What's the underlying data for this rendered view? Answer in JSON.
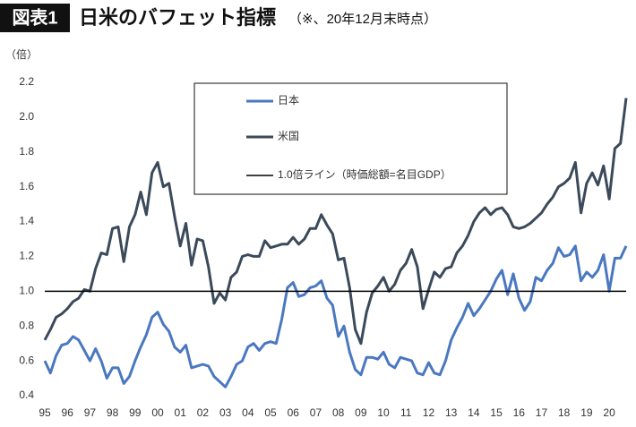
{
  "chart_data": {
    "type": "line",
    "badge": "図表1",
    "title": "日米のバフェット指標",
    "subtitle": "（※、20年12月末時点）",
    "y_unit": "（倍）",
    "categories": [
      "95",
      null,
      null,
      null,
      "96",
      null,
      null,
      null,
      "97",
      null,
      null,
      null,
      "98",
      null,
      null,
      null,
      "99",
      null,
      null,
      null,
      "00",
      null,
      null,
      null,
      "01",
      null,
      null,
      null,
      "02",
      null,
      null,
      null,
      "03",
      null,
      null,
      null,
      "04",
      null,
      null,
      null,
      "05",
      null,
      null,
      null,
      "06",
      null,
      null,
      null,
      "07",
      null,
      null,
      null,
      "08",
      null,
      null,
      null,
      "09",
      null,
      null,
      null,
      "10",
      null,
      null,
      null,
      "11",
      null,
      null,
      null,
      "12",
      null,
      null,
      null,
      "13",
      null,
      null,
      null,
      "14",
      null,
      null,
      null,
      "15",
      null,
      null,
      null,
      "16",
      null,
      null,
      null,
      "17",
      null,
      null,
      null,
      "18",
      null,
      null,
      null,
      "19",
      null,
      null,
      null,
      "20",
      null,
      null,
      null
    ],
    "series": [
      {
        "name": "日本",
        "color": "#4a78c0",
        "values": [
          0.6,
          0.53,
          0.63,
          0.69,
          0.7,
          0.74,
          0.72,
          0.66,
          0.6,
          0.67,
          0.6,
          0.5,
          0.56,
          0.56,
          0.47,
          0.51,
          0.6,
          0.68,
          0.75,
          0.85,
          0.88,
          0.81,
          0.77,
          0.68,
          0.65,
          0.69,
          0.56,
          0.57,
          0.58,
          0.57,
          0.51,
          0.48,
          0.45,
          0.51,
          0.58,
          0.6,
          0.68,
          0.7,
          0.66,
          0.7,
          0.71,
          0.7,
          0.84,
          1.02,
          1.05,
          0.97,
          0.98,
          1.02,
          1.03,
          1.06,
          0.96,
          0.92,
          0.74,
          0.8,
          0.65,
          0.55,
          0.52,
          0.62,
          0.62,
          0.61,
          0.65,
          0.58,
          0.56,
          0.62,
          0.61,
          0.6,
          0.53,
          0.52,
          0.59,
          0.53,
          0.52,
          0.6,
          0.72,
          0.79,
          0.85,
          0.93,
          0.86,
          0.9,
          0.95,
          1.0,
          1.07,
          1.12,
          0.98,
          1.1,
          0.96,
          0.89,
          0.94,
          1.08,
          1.06,
          1.12,
          1.16,
          1.25,
          1.2,
          1.21,
          1.26,
          1.06,
          1.11,
          1.08,
          1.12,
          1.21,
          1.0,
          1.19,
          1.19,
          1.26
        ]
      },
      {
        "name": "米国",
        "color": "#3b4a5a",
        "values": [
          0.72,
          0.78,
          0.85,
          0.87,
          0.9,
          0.94,
          0.96,
          1.01,
          1.0,
          1.13,
          1.22,
          1.21,
          1.36,
          1.37,
          1.17,
          1.37,
          1.44,
          1.57,
          1.44,
          1.68,
          1.74,
          1.6,
          1.62,
          1.43,
          1.26,
          1.39,
          1.15,
          1.3,
          1.29,
          1.14,
          0.93,
          0.99,
          0.95,
          1.08,
          1.11,
          1.2,
          1.21,
          1.2,
          1.2,
          1.29,
          1.25,
          1.26,
          1.27,
          1.27,
          1.31,
          1.27,
          1.3,
          1.36,
          1.36,
          1.44,
          1.38,
          1.33,
          1.18,
          1.19,
          1.02,
          0.78,
          0.7,
          0.88,
          0.99,
          1.03,
          1.08,
          1.0,
          1.04,
          1.12,
          1.16,
          1.24,
          1.14,
          0.9,
          1.01,
          1.11,
          1.08,
          1.13,
          1.14,
          1.22,
          1.26,
          1.32,
          1.4,
          1.45,
          1.48,
          1.44,
          1.47,
          1.48,
          1.44,
          1.37,
          1.36,
          1.37,
          1.39,
          1.42,
          1.45,
          1.5,
          1.54,
          1.6,
          1.62,
          1.65,
          1.74,
          1.45,
          1.62,
          1.68,
          1.61,
          1.72,
          1.53,
          1.82,
          1.85,
          2.11
        ]
      }
    ],
    "reference_line": {
      "value": 1,
      "label": "1.0倍ライン（時価総額=名目GDP）",
      "color": "#000000"
    },
    "ylim": [
      0.4,
      2.2
    ],
    "yticks": [
      0.4,
      0.6,
      0.8,
      {
        "value": 1,
        "label": "1.0"
      },
      1.2,
      1.4,
      1.6,
      1.8,
      {
        "value": 2,
        "label": "2.0"
      },
      2.2
    ],
    "grid": false
  }
}
